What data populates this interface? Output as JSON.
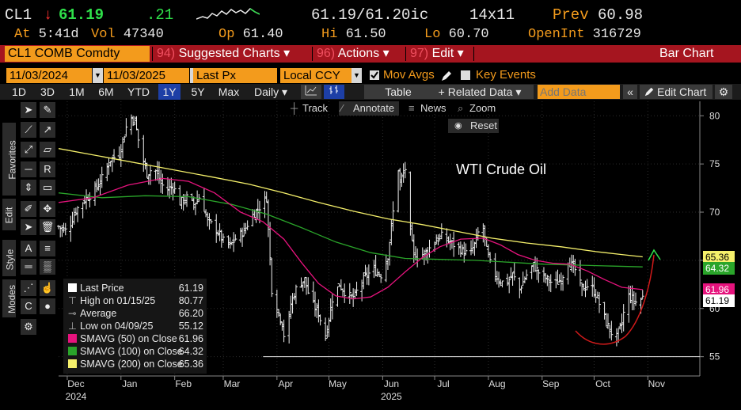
{
  "quote": {
    "ticker": "CL1",
    "arrow": "↓",
    "last": "61.19",
    "change": ".21",
    "bid_ask": "61.19/61.20",
    "bid_ask_suffix": "ic",
    "size": "14x11",
    "prev_label": "Prev",
    "prev": "60.98",
    "at_label": "At",
    "at_time": "5:41d",
    "vol_label": "Vol",
    "vol": "47340",
    "op_label": "Op",
    "op": "61.40",
    "hi_label": "Hi",
    "hi": "61.50",
    "lo_label": "Lo",
    "lo": "60.70",
    "oi_label": "OpenInt",
    "oi": "316729"
  },
  "cmdbar": {
    "security": "CL1 COMB Comdty",
    "menus": [
      {
        "num": "94)",
        "label": "Suggested Charts ▾"
      },
      {
        "num": "96)",
        "label": "Actions ▾"
      },
      {
        "num": "97)",
        "label": "Edit ▾"
      }
    ],
    "chart_type": "Bar Chart"
  },
  "dates": {
    "start": "11/03/2024",
    "end": "11/03/2025",
    "dash": "-",
    "field": "Last Px",
    "currency": "Local CCY",
    "mov_avgs": "Mov Avgs",
    "key_events": "Key Events"
  },
  "toolbar": {
    "periods": [
      "1D",
      "3D",
      "1M",
      "6M",
      "YTD",
      "1Y",
      "5Y",
      "Max"
    ],
    "selected": "1Y",
    "freq": "Daily ▾",
    "table": "Table",
    "related": "+ Related Data ▾",
    "add_data_placeholder": "Add Data",
    "chevrons": "«",
    "edit_chart": "Edit Chart"
  },
  "annotate": {
    "track": "Track",
    "annotate": "Annotate",
    "news": "News",
    "zoom": "Zoom",
    "reset": "Reset"
  },
  "side_tabs": [
    "Favorites",
    "Edit",
    "Style",
    "Modes"
  ],
  "legend": {
    "rows": [
      {
        "label": "Last Price",
        "value": "61.19",
        "color": "#ffffff"
      },
      {
        "label": "High on 01/15/25",
        "value": "80.77",
        "color": ""
      },
      {
        "label": "Average",
        "value": "66.20",
        "color": ""
      },
      {
        "label": "Low on 04/09/25",
        "value": "55.12",
        "color": ""
      },
      {
        "label": "SMAVG (50)  on Close",
        "value": "61.96",
        "color": "#e6137d"
      },
      {
        "label": "SMAVG (100)  on Close",
        "value": "64.32",
        "color": "#2aa52a"
      },
      {
        "label": "SMAVG (200)  on Close",
        "value": "65.36",
        "color": "#f5f06b"
      }
    ]
  },
  "price_tags": [
    {
      "value": "65.36",
      "bg": "#f5f06b",
      "fg": "#000"
    },
    {
      "value": "64.32",
      "bg": "#2aa52a",
      "fg": "#fff"
    },
    {
      "value": "61.96",
      "bg": "#e6137d",
      "fg": "#fff"
    },
    {
      "value": "61.19",
      "bg": "#ffffff",
      "fg": "#000"
    }
  ],
  "chart_data": {
    "type": "bar",
    "title": "WTI Crude Oil",
    "yticks": [
      55,
      60,
      65,
      70,
      75,
      80
    ],
    "ylim": [
      53,
      81.5
    ],
    "x_month_labels": [
      "Dec",
      "Jan",
      "Feb",
      "Mar",
      "Apr",
      "May",
      "Jun",
      "Jul",
      "Aug",
      "Sep",
      "Oct",
      "Nov"
    ],
    "x_year_labels": [
      "2024",
      "2025"
    ],
    "x_range_days": [
      0,
      370
    ],
    "month_start_days": [
      5,
      36,
      67,
      95,
      126,
      156,
      187,
      217,
      248,
      279,
      309,
      340
    ],
    "close": [
      [
        0,
        68.5
      ],
      [
        5,
        68.0
      ],
      [
        10,
        70.2
      ],
      [
        15,
        71.3
      ],
      [
        20,
        72.0
      ],
      [
        25,
        73.5
      ],
      [
        30,
        75.5
      ],
      [
        35,
        76.0
      ],
      [
        39,
        78.8
      ],
      [
        41,
        80.0
      ],
      [
        44,
        79.5
      ],
      [
        47,
        76.5
      ],
      [
        51,
        74.0
      ],
      [
        55,
        74.7
      ],
      [
        59,
        73.0
      ],
      [
        62,
        72.3
      ],
      [
        66,
        72.7
      ],
      [
        70,
        71.0
      ],
      [
        74,
        71.5
      ],
      [
        78,
        70.8
      ],
      [
        82,
        71.8
      ],
      [
        86,
        69.0
      ],
      [
        90,
        68.5
      ],
      [
        95,
        67.0
      ],
      [
        99,
        66.5
      ],
      [
        103,
        67.5
      ],
      [
        107,
        68.0
      ],
      [
        111,
        69.5
      ],
      [
        115,
        70.3
      ],
      [
        120,
        71.5
      ],
      [
        123,
        62.0
      ],
      [
        126,
        60.0
      ],
      [
        129,
        58.5
      ],
      [
        131,
        56.0
      ],
      [
        134,
        60.5
      ],
      [
        138,
        62.5
      ],
      [
        142,
        63.0
      ],
      [
        145,
        61.0
      ],
      [
        150,
        59.5
      ],
      [
        154,
        57.0
      ],
      [
        158,
        61.0
      ],
      [
        162,
        62.5
      ],
      [
        166,
        61.5
      ],
      [
        170,
        61.0
      ],
      [
        174,
        62.5
      ],
      [
        178,
        63.5
      ],
      [
        182,
        64.0
      ],
      [
        186,
        63.5
      ],
      [
        190,
        65.5
      ],
      [
        193,
        70.0
      ],
      [
        195,
        76.0
      ],
      [
        197,
        73.0
      ],
      [
        200,
        74.5
      ],
      [
        202,
        69.0
      ],
      [
        205,
        65.5
      ],
      [
        209,
        65.5
      ],
      [
        213,
        66.0
      ],
      [
        217,
        67.0
      ],
      [
        221,
        67.5
      ],
      [
        225,
        67.0
      ],
      [
        229,
        66.5
      ],
      [
        233,
        66.0
      ],
      [
        237,
        65.5
      ],
      [
        241,
        67.0
      ],
      [
        244,
        69.5
      ],
      [
        247,
        66.0
      ],
      [
        250,
        64.0
      ],
      [
        254,
        63.0
      ],
      [
        258,
        62.5
      ],
      [
        262,
        63.5
      ],
      [
        266,
        62.0
      ],
      [
        270,
        63.5
      ],
      [
        274,
        64.5
      ],
      [
        278,
        63.5
      ],
      [
        282,
        63.0
      ],
      [
        286,
        62.5
      ],
      [
        290,
        63.0
      ],
      [
        294,
        65.0
      ],
      [
        298,
        64.0
      ],
      [
        302,
        62.0
      ],
      [
        306,
        62.5
      ],
      [
        310,
        61.5
      ],
      [
        313,
        60.0
      ],
      [
        316,
        58.5
      ],
      [
        319,
        57.5
      ],
      [
        322,
        57.0
      ],
      [
        325,
        58.5
      ],
      [
        328,
        61.5
      ],
      [
        331,
        61.0
      ],
      [
        334,
        60.5
      ],
      [
        337,
        61.19
      ]
    ],
    "sma50": [
      [
        0,
        71.0
      ],
      [
        20,
        71.5
      ],
      [
        40,
        72.8
      ],
      [
        60,
        73.5
      ],
      [
        75,
        73.2
      ],
      [
        90,
        72.0
      ],
      [
        105,
        70.0
      ],
      [
        118,
        69.0
      ],
      [
        130,
        67.2
      ],
      [
        140,
        64.8
      ],
      [
        150,
        62.6
      ],
      [
        160,
        61.3
      ],
      [
        170,
        61.0
      ],
      [
        180,
        61.2
      ],
      [
        190,
        62.2
      ],
      [
        200,
        63.8
      ],
      [
        210,
        65.3
      ],
      [
        220,
        66.4
      ],
      [
        232,
        67.2
      ],
      [
        245,
        67.3
      ],
      [
        255,
        66.6
      ],
      [
        265,
        65.6
      ],
      [
        275,
        65.0
      ],
      [
        285,
        64.7
      ],
      [
        295,
        64.6
      ],
      [
        305,
        63.9
      ],
      [
        315,
        63.0
      ],
      [
        325,
        62.2
      ],
      [
        337,
        61.96
      ]
    ],
    "sma100": [
      [
        0,
        72.0
      ],
      [
        25,
        71.5
      ],
      [
        50,
        71.7
      ],
      [
        75,
        71.6
      ],
      [
        100,
        70.8
      ],
      [
        120,
        69.8
      ],
      [
        140,
        68.4
      ],
      [
        160,
        66.9
      ],
      [
        180,
        65.8
      ],
      [
        200,
        65.2
      ],
      [
        220,
        65.1
      ],
      [
        240,
        65.0
      ],
      [
        260,
        64.8
      ],
      [
        280,
        64.6
      ],
      [
        300,
        64.5
      ],
      [
        320,
        64.4
      ],
      [
        337,
        64.32
      ]
    ],
    "sma200": [
      [
        0,
        76.6
      ],
      [
        30,
        75.6
      ],
      [
        60,
        74.6
      ],
      [
        90,
        73.6
      ],
      [
        110,
        72.9
      ],
      [
        130,
        72.0
      ],
      [
        150,
        71.0
      ],
      [
        170,
        70.1
      ],
      [
        190,
        69.3
      ],
      [
        210,
        68.7
      ],
      [
        230,
        68.0
      ],
      [
        250,
        67.3
      ],
      [
        270,
        66.8
      ],
      [
        290,
        66.4
      ],
      [
        310,
        65.9
      ],
      [
        325,
        65.6
      ],
      [
        337,
        65.36
      ]
    ],
    "support_level": 55.0
  }
}
